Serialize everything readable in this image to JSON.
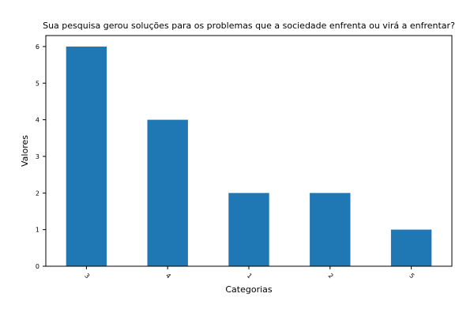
{
  "chart_data": {
    "type": "bar",
    "title": "Sua pesquisa gerou soluções para os problemas que a sociedade enfrenta ou virá a enfrentar?",
    "xlabel": "Categorias",
    "ylabel": "Valores",
    "categories": [
      "3",
      "4",
      "1",
      "2",
      "5"
    ],
    "values": [
      6,
      4,
      2,
      2,
      1
    ],
    "yticks": [
      0,
      1,
      2,
      3,
      4,
      5,
      6
    ],
    "ylim": [
      0,
      6.3
    ],
    "bar_color": "#1f77b4",
    "grid": false,
    "legend": "none"
  }
}
